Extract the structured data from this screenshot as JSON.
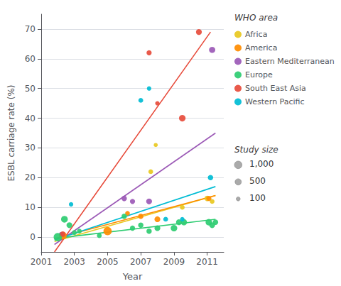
{
  "chart_data": {
    "type": "scatter",
    "xlabel": "Year",
    "ylabel": "ESBL carriage rate (%)",
    "xlim": [
      2001,
      2012
    ],
    "ylim": [
      -5,
      75
    ],
    "xticks": [
      2001,
      2003,
      2005,
      2007,
      2009,
      2011
    ],
    "yticks": [
      0,
      10,
      20,
      30,
      40,
      50,
      60,
      70
    ],
    "grid": "y",
    "legend": "right",
    "legend_title": "WHO area",
    "series": [
      {
        "name": "Africa",
        "color": "#e8c820",
        "x": [
          2002.2,
          2007.6,
          2007.9,
          2009.5,
          2011.0,
          2011.3
        ],
        "values": [
          0.5,
          22,
          31,
          10,
          13,
          12
        ],
        "size": [
          120,
          180,
          100,
          180,
          280,
          180
        ],
        "trend": {
          "x": [
            2001.8,
            2011.5
          ],
          "values": [
            -1.5,
            14
          ]
        }
      },
      {
        "name": "America",
        "color": "#ff8c00",
        "x": [
          2002.3,
          2005.0,
          2006.2,
          2007.0,
          2008.0,
          2011.1
        ],
        "values": [
          0.5,
          2.0,
          8.0,
          7.0,
          6.0,
          13.0
        ],
        "size": [
          1100,
          1400,
          180,
          280,
          380,
          250
        ],
        "trend": {
          "x": [
            2001.8,
            2011.5
          ],
          "values": [
            -0.5,
            14
          ]
        }
      },
      {
        "name": "Eastern Mediterranean",
        "color": "#9b59b6",
        "x": [
          2002.2,
          2006.0,
          2006.5,
          2007.5,
          2011.3
        ],
        "values": [
          1.0,
          13.0,
          12.0,
          12.0,
          63.0
        ],
        "size": [
          120,
          280,
          240,
          380,
          480
        ],
        "trend": {
          "x": [
            2001.8,
            2011.5
          ],
          "values": [
            -2.5,
            35
          ]
        }
      },
      {
        "name": "Europe",
        "color": "#2ecc71",
        "x": [
          2002.0,
          2002.4,
          2002.7,
          2003.0,
          2003.3,
          2004.5,
          2006.0,
          2006.5,
          2007.0,
          2007.5,
          2008.0,
          2009.0,
          2009.3,
          2009.6,
          2011.1,
          2011.3,
          2011.5
        ],
        "values": [
          0.0,
          6.0,
          4.0,
          1.5,
          2.0,
          0.5,
          7.0,
          3.0,
          4.0,
          2.0,
          3.0,
          3.0,
          5.0,
          5.0,
          5.0,
          4.0,
          5.0
        ],
        "size": [
          1400,
          650,
          380,
          190,
          190,
          190,
          280,
          240,
          280,
          280,
          380,
          580,
          380,
          480,
          580,
          380,
          280
        ],
        "trend": {
          "x": [
            2001.8,
            2011.5
          ],
          "values": [
            -0.5,
            6
          ]
        }
      },
      {
        "name": "South East Asia",
        "color": "#e74c3c",
        "x": [
          2002.3,
          2007.5,
          2008.0,
          2009.5,
          2010.5
        ],
        "values": [
          1.0,
          62.0,
          45.0,
          40.0,
          69.0
        ],
        "size": [
          280,
          240,
          140,
          580,
          380
        ],
        "trend": {
          "x": [
            2001.8,
            2011.2
          ],
          "values": [
            -5.0,
            69
          ]
        }
      },
      {
        "name": "Western Pacific",
        "color": "#00bcd4",
        "x": [
          2002.8,
          2007.0,
          2007.5,
          2008.5,
          2009.5,
          2011.2
        ],
        "values": [
          11.0,
          46.0,
          50.0,
          6.0,
          6.0,
          20.0
        ],
        "size": [
          140,
          190,
          140,
          190,
          140,
          280
        ],
        "trend": {
          "x": [
            2001.8,
            2011.5
          ],
          "values": [
            -1.0,
            17
          ]
        }
      }
    ],
    "size_legend": {
      "title": "Study size",
      "labels": [
        "1,000",
        "500",
        "100"
      ],
      "sizes": [
        1000,
        500,
        100
      ]
    }
  }
}
